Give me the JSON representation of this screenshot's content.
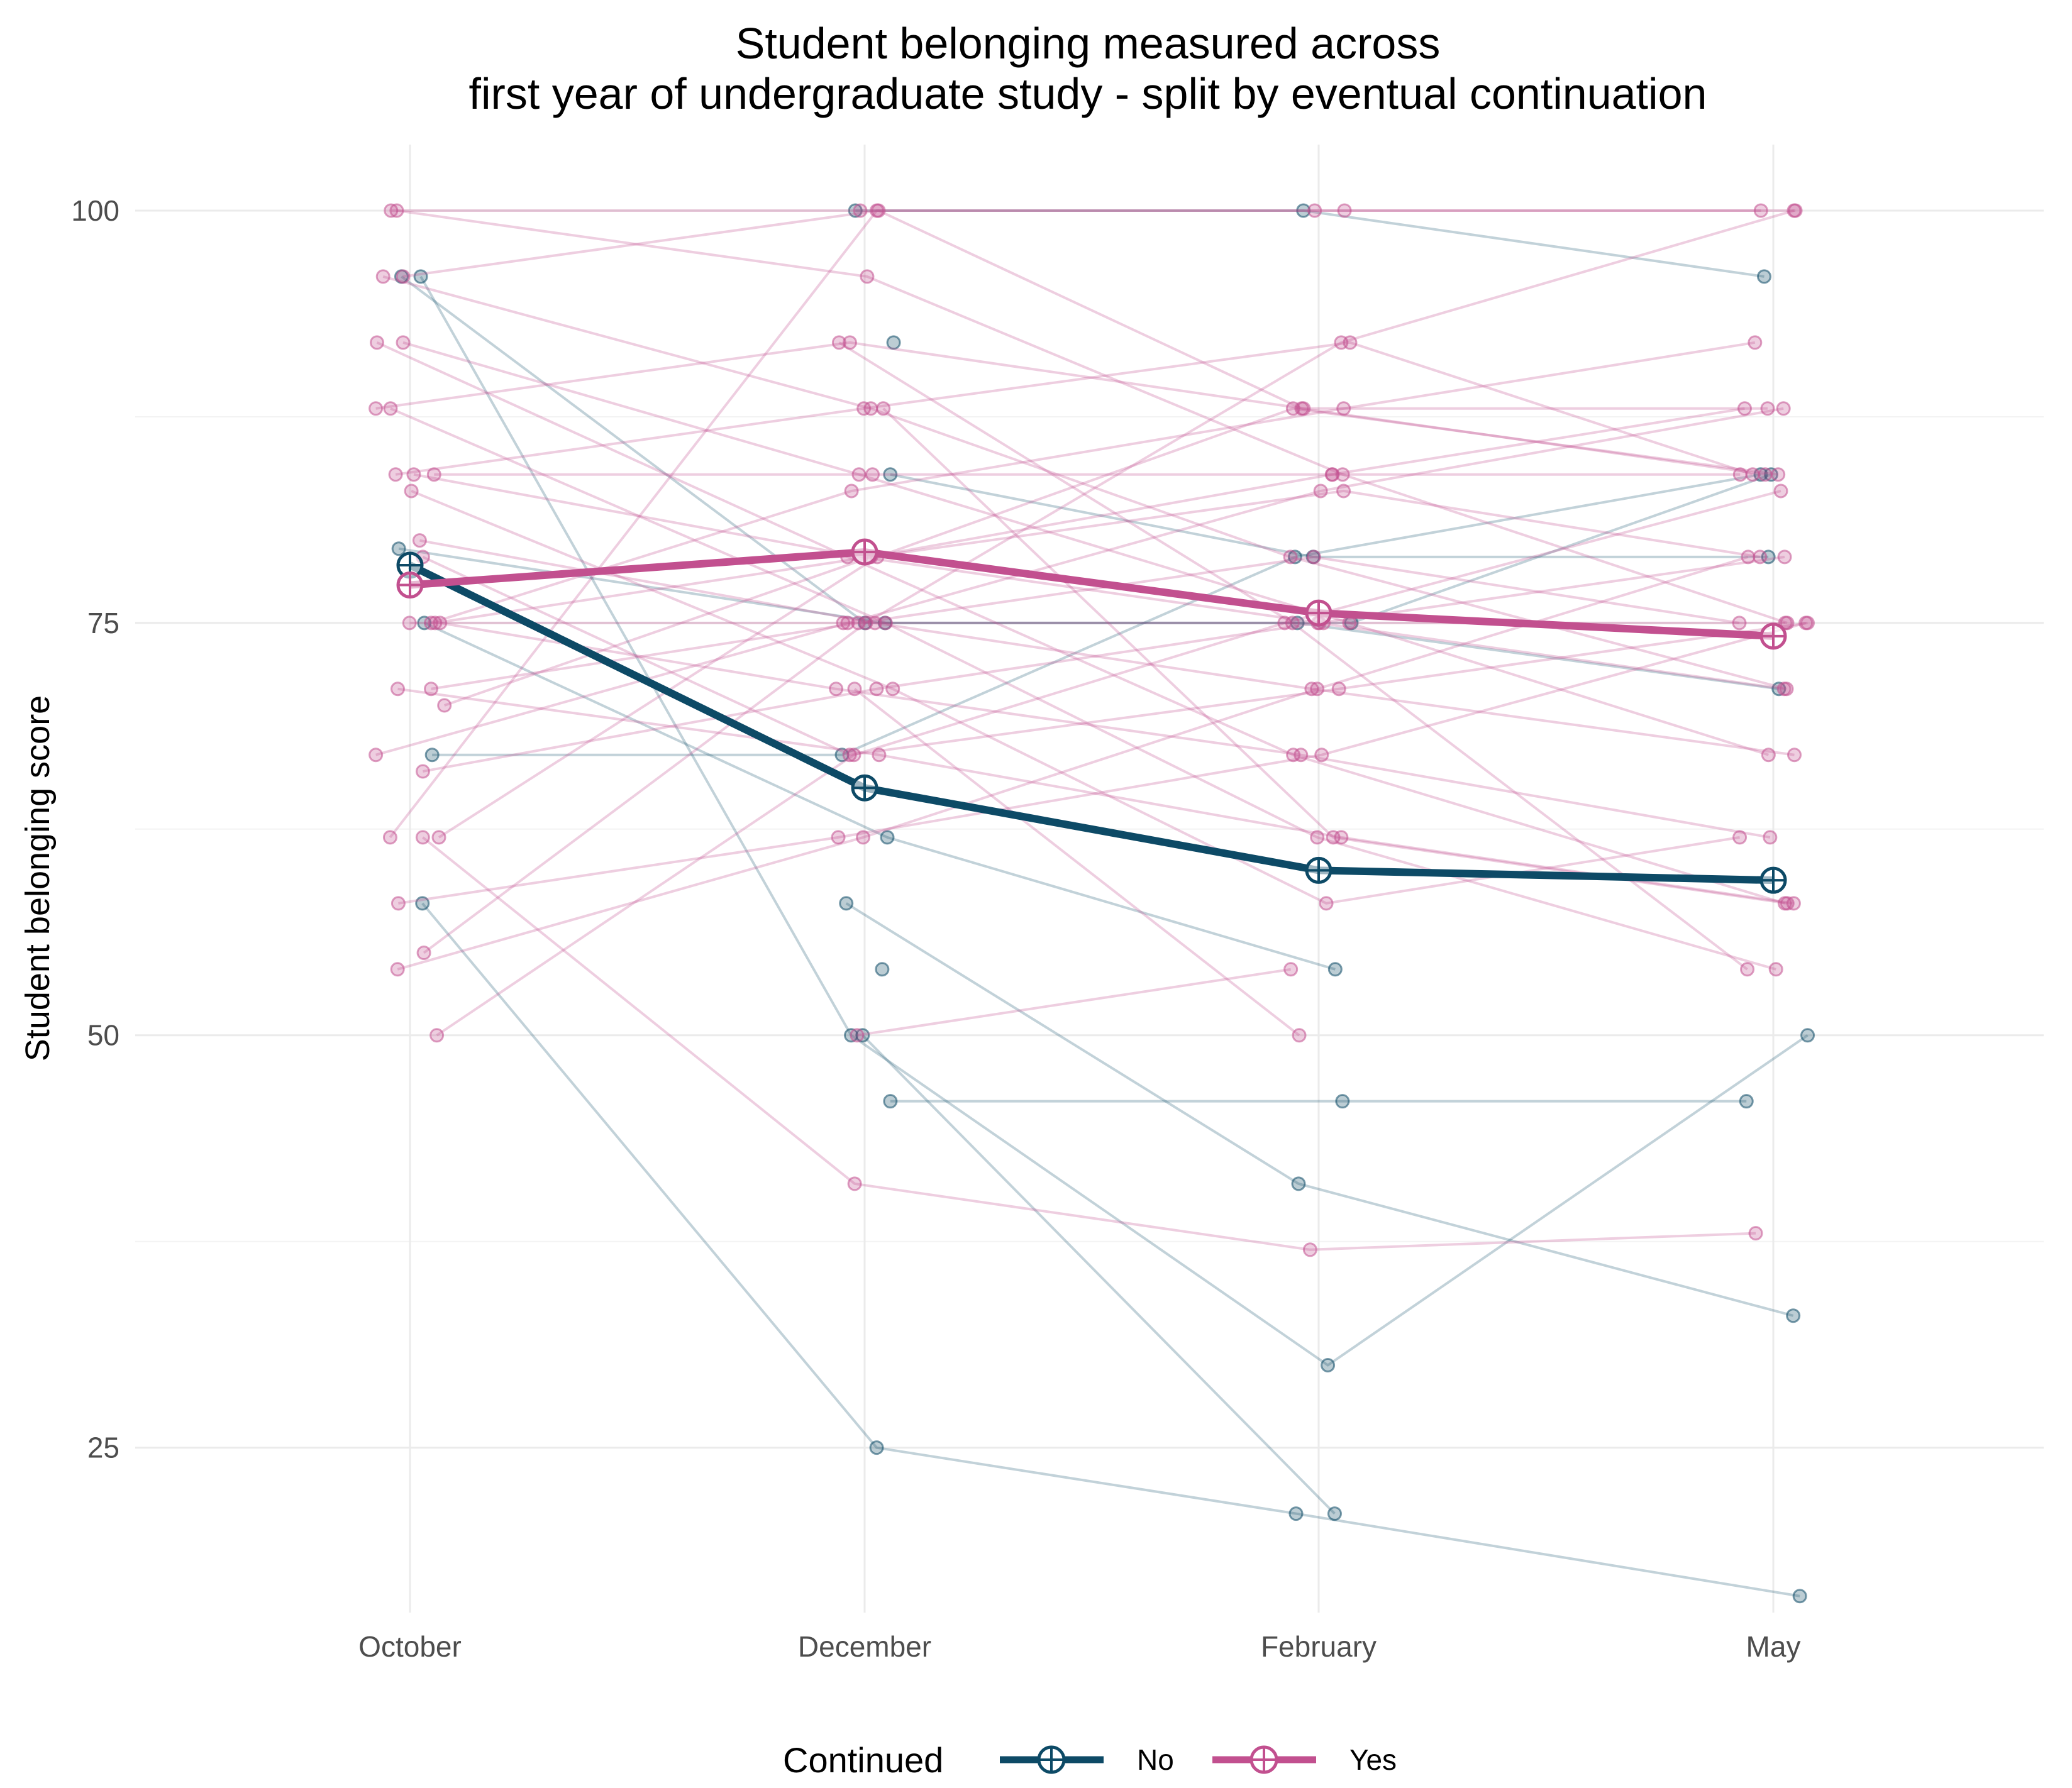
{
  "chart_data": {
    "type": "line",
    "title": "Student belonging measured across",
    "subtitle": "first year of undergraduate study - split by eventual continuation",
    "xlabel": "",
    "ylabel": "Student belonging score",
    "categories": [
      "October",
      "December",
      "February",
      "May"
    ],
    "ylim": [
      15,
      104
    ],
    "yticks": [
      25,
      50,
      75,
      100
    ],
    "grid": true,
    "legend": {
      "title": "Continued",
      "position": "bottom",
      "entries": [
        {
          "name": "No",
          "color": "#0d4a66"
        },
        {
          "name": "Yes",
          "color": "#c2508f"
        }
      ]
    },
    "series": [
      {
        "name": "No",
        "color": "#0d4a66",
        "values": [
          78.5,
          65,
          60,
          59.4
        ]
      },
      {
        "name": "Yes",
        "color": "#c2508f",
        "values": [
          77.3,
          79.3,
          75.6,
          74.2
        ]
      }
    ],
    "individual_trajectories": [
      {
        "group": "No",
        "values": [
          96,
          50,
          30,
          50
        ]
      },
      {
        "group": "No",
        "values": [
          58,
          25,
          21,
          16
        ]
      },
      {
        "group": "No",
        "values": [
          75,
          62,
          54,
          null
        ]
      },
      {
        "group": "No",
        "values": [
          79.5,
          75,
          75,
          71
        ]
      },
      {
        "group": "No",
        "values": [
          null,
          58,
          41,
          33
        ]
      },
      {
        "group": "No",
        "values": [
          null,
          46,
          46,
          46
        ]
      },
      {
        "group": "No",
        "values": [
          null,
          50,
          21,
          null
        ]
      },
      {
        "group": "No",
        "values": [
          null,
          100,
          100,
          96
        ]
      },
      {
        "group": "No",
        "values": [
          null,
          92,
          null,
          null
        ]
      },
      {
        "group": "No",
        "values": [
          null,
          84,
          79,
          79
        ]
      },
      {
        "group": "No",
        "values": [
          67,
          67,
          79,
          84
        ]
      },
      {
        "group": "No",
        "values": [
          96,
          75,
          75,
          84
        ]
      },
      {
        "group": "No",
        "values": [
          null,
          54,
          null,
          null
        ]
      },
      {
        "group": "Yes",
        "values": [
          100,
          100,
          100,
          100
        ]
      },
      {
        "group": "Yes",
        "values": [
          100,
          96,
          84,
          75
        ]
      },
      {
        "group": "Yes",
        "values": [
          96,
          88,
          79,
          71
        ]
      },
      {
        "group": "Yes",
        "values": [
          96,
          100,
          88,
          84
        ]
      },
      {
        "group": "Yes",
        "values": [
          92,
          84,
          75,
          67
        ]
      },
      {
        "group": "Yes",
        "values": [
          92,
          79,
          67,
          58
        ]
      },
      {
        "group": "Yes",
        "values": [
          88,
          92,
          88,
          88
        ]
      },
      {
        "group": "Yes",
        "values": [
          88,
          75,
          62,
          54
        ]
      },
      {
        "group": "Yes",
        "values": [
          84,
          84,
          84,
          84
        ]
      },
      {
        "group": "Yes",
        "values": [
          84,
          79,
          75,
          79
        ]
      },
      {
        "group": "Yes",
        "values": [
          84,
          88,
          92,
          84
        ]
      },
      {
        "group": "Yes",
        "values": [
          83,
          71,
          58,
          62
        ]
      },
      {
        "group": "Yes",
        "values": [
          80,
          75,
          71,
          67
        ]
      },
      {
        "group": "Yes",
        "values": [
          79,
          67,
          71,
          75
        ]
      },
      {
        "group": "Yes",
        "values": [
          75,
          75,
          75,
          75
        ]
      },
      {
        "group": "Yes",
        "values": [
          75,
          79,
          84,
          88
        ]
      },
      {
        "group": "Yes",
        "values": [
          75,
          71,
          67,
          62
        ]
      },
      {
        "group": "Yes",
        "values": [
          75,
          83,
          88,
          92
        ]
      },
      {
        "group": "Yes",
        "values": [
          71,
          75,
          79,
          75
        ]
      },
      {
        "group": "Yes",
        "values": [
          71,
          67,
          62,
          58
        ]
      },
      {
        "group": "Yes",
        "values": [
          70,
          79,
          83,
          79
        ]
      },
      {
        "group": "Yes",
        "values": [
          67,
          75,
          83,
          88
        ]
      },
      {
        "group": "Yes",
        "values": [
          66,
          71,
          75,
          71
        ]
      },
      {
        "group": "Yes",
        "values": [
          62,
          79,
          88,
          84
        ]
      },
      {
        "group": "Yes",
        "values": [
          62,
          100,
          100,
          100
        ]
      },
      {
        "group": "Yes",
        "values": [
          62,
          41,
          37,
          38
        ]
      },
      {
        "group": "Yes",
        "values": [
          58,
          62,
          67,
          75
        ]
      },
      {
        "group": "Yes",
        "values": [
          55,
          75,
          92,
          100
        ]
      },
      {
        "group": "Yes",
        "values": [
          54,
          62,
          71,
          79
        ]
      },
      {
        "group": "Yes",
        "values": [
          50,
          67,
          75,
          83
        ]
      },
      {
        "group": "Yes",
        "values": [
          null,
          50,
          54,
          null
        ]
      },
      {
        "group": "Yes",
        "values": [
          null,
          92,
          75,
          54
        ]
      },
      {
        "group": "Yes",
        "values": [
          null,
          88,
          62,
          58
        ]
      },
      {
        "group": "Yes",
        "values": [
          null,
          71,
          50,
          null
        ]
      }
    ]
  }
}
